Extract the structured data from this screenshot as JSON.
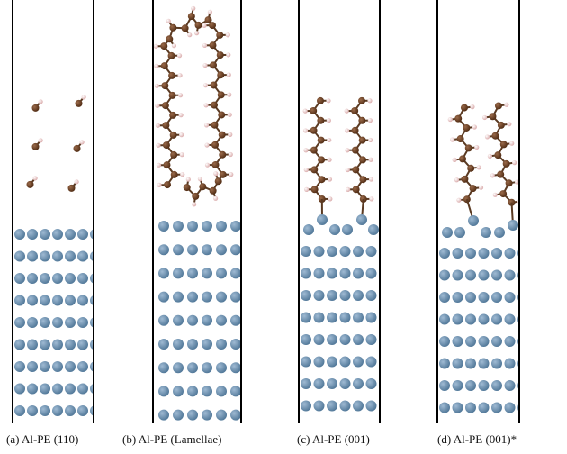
{
  "panels": [
    {
      "caption": "(a) Al-PE (110)"
    },
    {
      "caption": "(b) Al-PE (Lamellae)"
    },
    {
      "caption": "(c) Al-PE (001)"
    },
    {
      "caption": "(d) Al-PE (001)*"
    }
  ]
}
